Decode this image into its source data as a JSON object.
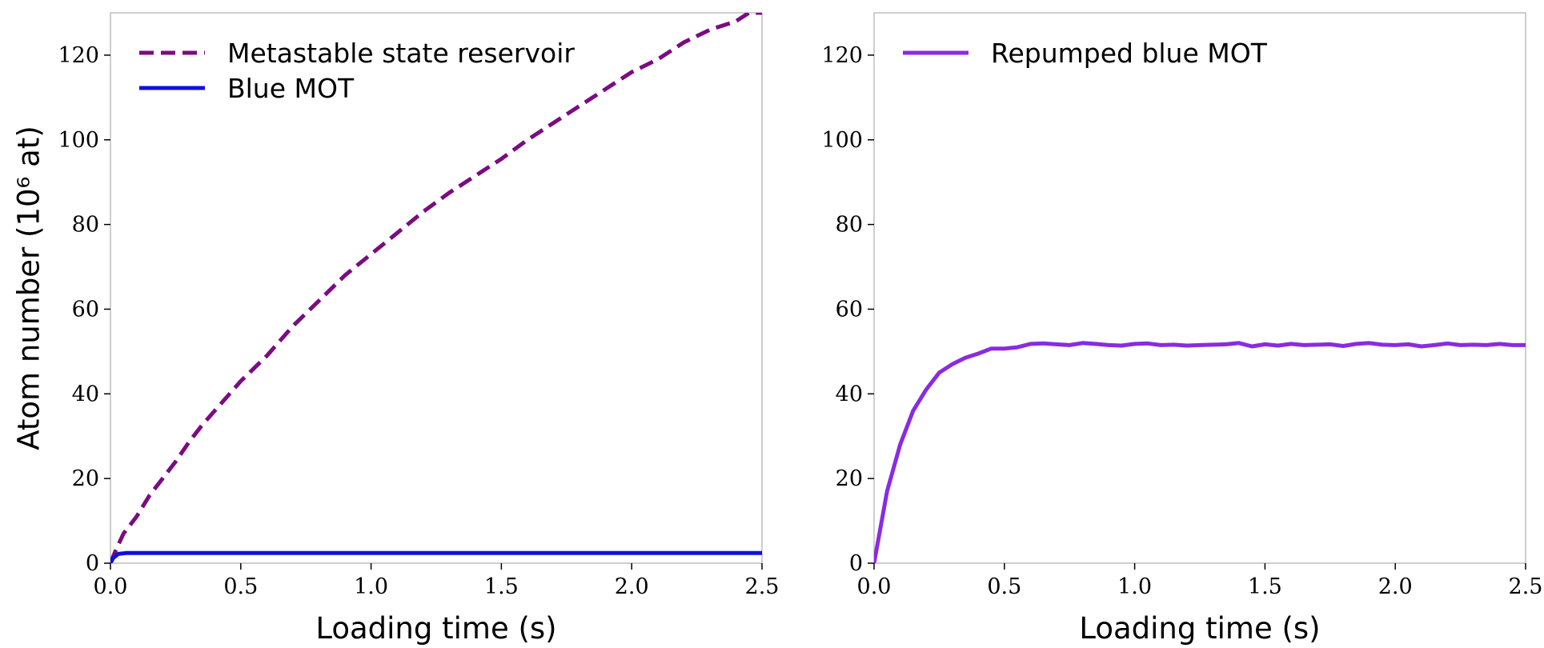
{
  "chart_data": [
    {
      "type": "line",
      "xlabel": "Loading time (s)",
      "ylabel": "Atom number (10⁶ at)",
      "xlim": [
        0,
        2.5
      ],
      "ylim": [
        0,
        130
      ],
      "xticks": [
        "0.0",
        "0.5",
        "1.0",
        "1.5",
        "2.0",
        "2.5"
      ],
      "yticks": [
        "0",
        "20",
        "40",
        "60",
        "80",
        "100",
        "120"
      ],
      "grid": false,
      "legend": "top-left",
      "series": [
        {
          "name": "Metastable state reservoir",
          "color": "#7a0c82",
          "style": "dashed",
          "x": [
            0.0,
            0.02,
            0.05,
            0.1,
            0.15,
            0.2,
            0.25,
            0.3,
            0.35,
            0.4,
            0.45,
            0.5,
            0.6,
            0.7,
            0.8,
            0.9,
            1.0,
            1.1,
            1.2,
            1.3,
            1.4,
            1.5,
            1.6,
            1.7,
            1.8,
            1.9,
            2.0,
            2.1,
            2.2,
            2.3,
            2.4,
            2.45,
            2.5
          ],
          "y": [
            0,
            3,
            7,
            11,
            16,
            20,
            24,
            28.5,
            32.5,
            36,
            39.5,
            43,
            49,
            56,
            62,
            68,
            73,
            78,
            83,
            87.5,
            91.5,
            95.5,
            100,
            104,
            108,
            112,
            116,
            119,
            123,
            126,
            128,
            130,
            130
          ]
        },
        {
          "name": "Blue MOT",
          "color": "#1010e0",
          "style": "solid",
          "x": [
            0.0,
            0.01,
            0.03,
            0.06,
            0.1,
            0.5,
            1.0,
            1.5,
            2.0,
            2.5
          ],
          "y": [
            0,
            1.2,
            2.2,
            2.4,
            2.4,
            2.4,
            2.4,
            2.4,
            2.4,
            2.4
          ]
        }
      ]
    },
    {
      "type": "line",
      "xlabel": "Loading time (s)",
      "ylabel": "",
      "xlim": [
        0,
        2.5
      ],
      "ylim": [
        0,
        130
      ],
      "xticks": [
        "0.0",
        "0.5",
        "1.0",
        "1.5",
        "2.0",
        "2.5"
      ],
      "yticks": [
        "0",
        "20",
        "40",
        "60",
        "80",
        "100",
        "120"
      ],
      "grid": false,
      "legend": "top-left",
      "series": [
        {
          "name": "Repumped blue MOT",
          "color": "#8a2be2",
          "style": "solid",
          "x": [
            0.0,
            0.05,
            0.1,
            0.15,
            0.2,
            0.25,
            0.3,
            0.35,
            0.4,
            0.45,
            0.5,
            0.55,
            0.6,
            0.65,
            0.7,
            0.75,
            0.8,
            0.85,
            0.9,
            0.95,
            1.0,
            1.05,
            1.1,
            1.15,
            1.2,
            1.25,
            1.3,
            1.35,
            1.4,
            1.45,
            1.5,
            1.55,
            1.6,
            1.65,
            1.7,
            1.75,
            1.8,
            1.85,
            1.9,
            1.95,
            2.0,
            2.05,
            2.1,
            2.15,
            2.2,
            2.25,
            2.3,
            2.35,
            2.4,
            2.45,
            2.5
          ],
          "y": [
            0,
            17,
            28,
            36,
            41,
            45,
            47,
            48.5,
            49.5,
            50.7,
            50.7,
            51,
            51.8,
            51.9,
            51.7,
            51.5,
            52,
            51.8,
            51.5,
            51.4,
            51.8,
            51.9,
            51.5,
            51.6,
            51.4,
            51.5,
            51.6,
            51.7,
            52,
            51.2,
            51.7,
            51.4,
            51.8,
            51.5,
            51.6,
            51.7,
            51.3,
            51.8,
            52,
            51.6,
            51.5,
            51.7,
            51.2,
            51.5,
            51.9,
            51.5,
            51.6,
            51.5,
            51.8,
            51.5,
            51.5
          ]
        }
      ]
    }
  ]
}
